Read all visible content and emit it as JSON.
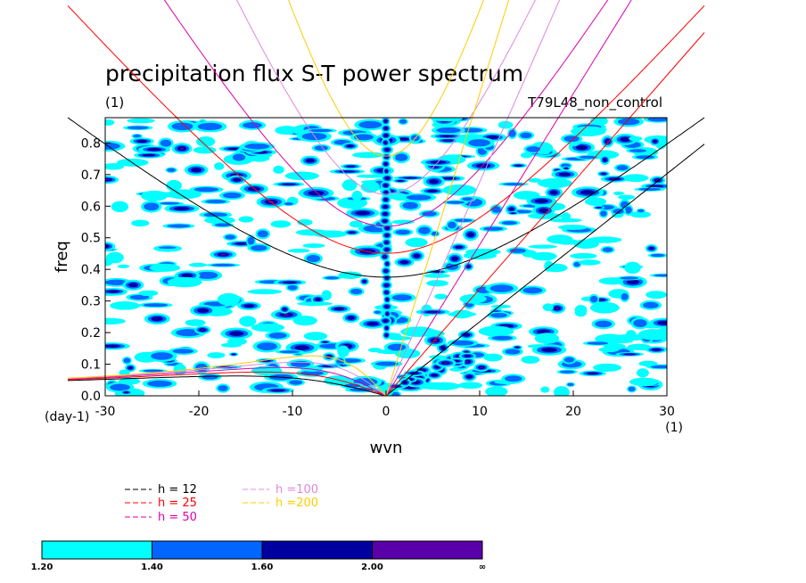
{
  "chart_data": {
    "type": "heatmap",
    "title": "precipitation flux S-T power spectrum",
    "subtitle_left": "(1)",
    "subtitle_right": "T79L48_non_control",
    "xlabel": "wvn",
    "ylabel": "freq",
    "x_unit": "(1)",
    "y_unit": "(day-1)",
    "xlim": [
      -30,
      30
    ],
    "ylim": [
      0,
      0.88
    ],
    "xticks": [
      -30,
      -20,
      -10,
      0,
      10,
      20,
      30
    ],
    "yticks": [
      0.0,
      0.1,
      0.2,
      0.3,
      0.4,
      0.5,
      0.6,
      0.7,
      0.8
    ],
    "contour_levels": [
      "1.20",
      "1.40",
      "1.60",
      "2.00",
      "∞"
    ],
    "contour_colors": [
      "#00ffff",
      "#0066ff",
      "#0000a0",
      "#5a00aa"
    ],
    "field_features": [
      {
        "description_x": 0,
        "freq_range": [
          0.3,
          0.88
        ],
        "level": "2.00"
      },
      {
        "description_x": 3,
        "freq_range": [
          0.0,
          0.15
        ],
        "level": "2.00"
      }
    ],
    "dispersion_curves": [
      {
        "h": 12,
        "label": "h = 12",
        "color": "#000000"
      },
      {
        "h": 25,
        "label": "h = 25",
        "color": "#ff0000"
      },
      {
        "h": 50,
        "label": "h = 50",
        "color": "#dd00aa"
      },
      {
        "h": 100,
        "label": "h =100",
        "color": "#dd88dd"
      },
      {
        "h": 200,
        "label": "h =200",
        "color": "#ffcc00"
      }
    ]
  }
}
